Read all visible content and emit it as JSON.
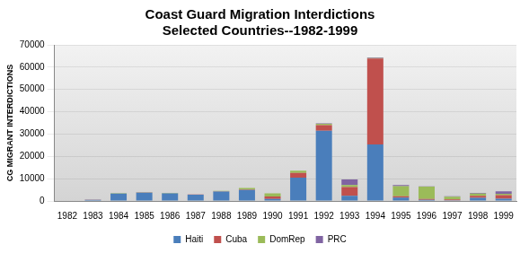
{
  "chart_data": {
    "type": "bar",
    "title": "Coast Guard Migration Interdictions",
    "subtitle": "Selected Countries--1982-1999",
    "y_label": "CG MIGRANT INTERDICTIONS",
    "categories": [
      "1982",
      "1983",
      "1984",
      "1985",
      "1986",
      "1987",
      "1988",
      "1989",
      "1990",
      "1991",
      "1992",
      "1993",
      "1994",
      "1995",
      "1996",
      "1997",
      "1998",
      "1999"
    ],
    "series": [
      {
        "name": "Haiti",
        "color": "#4a7ebb",
        "values": [
          171,
          511,
          3311,
          3721,
          3422,
          2866,
          4262,
          4902,
          871,
          10490,
          31438,
          2329,
          25302,
          1500,
          500,
          288,
          1369,
          1039
        ]
      },
      {
        "name": "Cuba",
        "color": "#c0504d",
        "values": [
          0,
          44,
          46,
          51,
          27,
          46,
          60,
          257,
          1162,
          2066,
          2557,
          3951,
          38560,
          600,
          400,
          421,
          903,
          1619
        ]
      },
      {
        "name": "DomRep",
        "color": "#9bbb59",
        "values": [
          0,
          6,
          181,
          113,
          189,
          40,
          254,
          664,
          1426,
          1007,
          588,
          873,
          232,
          4500,
          5500,
          1200,
          1097,
          583
        ]
      },
      {
        "name": "PRC",
        "color": "#8064a2",
        "values": [
          0,
          0,
          0,
          0,
          0,
          0,
          0,
          0,
          0,
          0,
          181,
          2511,
          291,
          500,
          100,
          240,
          212,
          1092
        ]
      }
    ],
    "stacked": true,
    "ylim": [
      0,
      70000
    ],
    "yticks": [
      0,
      10000,
      20000,
      30000,
      40000,
      50000,
      60000,
      70000
    ],
    "grid": true,
    "legend": "bottom"
  }
}
